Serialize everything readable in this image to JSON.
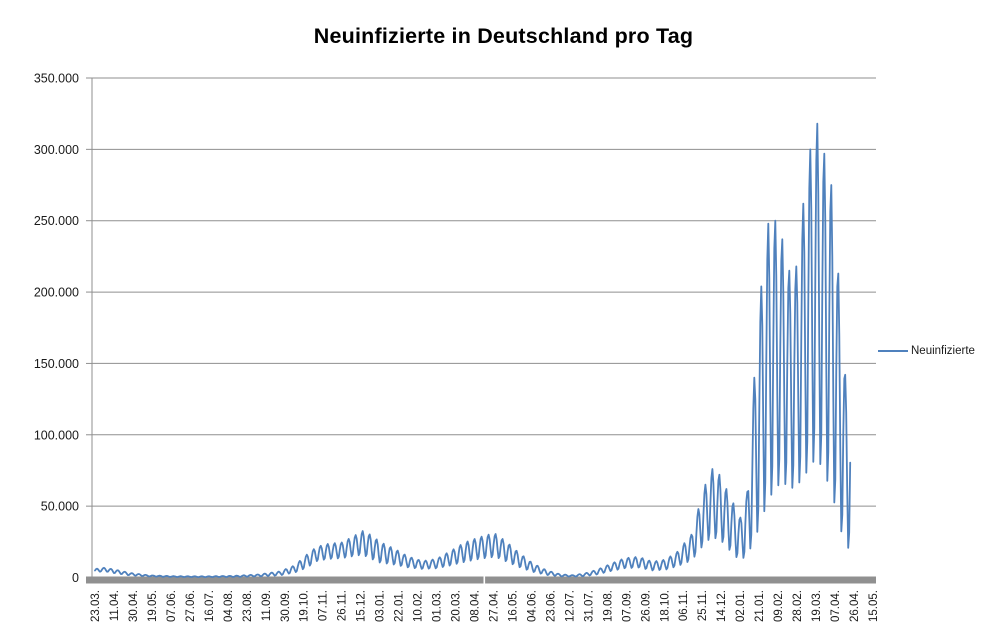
{
  "title": "Neuinfizierte in Deutschland pro Tag",
  "legend": {
    "label": "Neuinfizierte"
  },
  "colors": {
    "series_line": "#4F81BD",
    "gridline": "#8F8F8F",
    "axis_line": "#8F8F8F",
    "axis_bar": "#909090",
    "text": "#1A1A1A",
    "background": "#FFFFFF"
  },
  "chart_data": {
    "type": "line",
    "title": "Neuinfizierte in Deutschland pro Tag",
    "legend_position": "right",
    "grid": true,
    "ylim": [
      0,
      350000
    ],
    "y_tick_step": 50000,
    "y_tick_labels": [
      "0",
      "50.000",
      "100.000",
      "150.000",
      "200.000",
      "250.000",
      "300.000",
      "350.000"
    ],
    "x_tick_labels": [
      "23.03.",
      "11.04.",
      "30.04.",
      "19.05.",
      "07.06.",
      "27.06.",
      "16.07.",
      "04.08.",
      "23.08.",
      "11.09.",
      "30.09.",
      "19.10.",
      "07.11.",
      "26.11.",
      "15.12.",
      "03.01.",
      "22.01.",
      "10.02.",
      "01.03.",
      "20.03.",
      "08.04.",
      "27.04.",
      "16.05.",
      "04.06.",
      "23.06.",
      "12.07.",
      "31.07.",
      "19.08.",
      "07.09.",
      "26.09.",
      "18.10.",
      "06.11.",
      "25.11.",
      "14.12.",
      "02.01.",
      "21.01.",
      "09.02.",
      "28.02.",
      "19.03.",
      "07.04.",
      "26.04.",
      "15.05."
    ],
    "x_days_per_tick": 19,
    "n_days": 756,
    "series": [
      {
        "name": "Neuinfizierte",
        "color": "#4F81BD",
        "weekly_pattern": [
          0.0,
          0.1,
          0.55,
          0.9,
          1.0,
          0.8,
          0.35
        ],
        "weekly_offset": 2,
        "envelope_keypoints": [
          [
            0,
            3500,
            6000
          ],
          [
            9,
            4500,
            6800
          ],
          [
            18,
            3200,
            5800
          ],
          [
            35,
            1500,
            3200
          ],
          [
            55,
            700,
            1500
          ],
          [
            80,
            350,
            900
          ],
          [
            110,
            300,
            800
          ],
          [
            140,
            400,
            1200
          ],
          [
            165,
            800,
            2200
          ],
          [
            185,
            1500,
            4200
          ],
          [
            200,
            3500,
            8500
          ],
          [
            212,
            7000,
            16000
          ],
          [
            222,
            11500,
            21500
          ],
          [
            233,
            13000,
            23500
          ],
          [
            247,
            13500,
            24500
          ],
          [
            258,
            15000,
            28500
          ],
          [
            268,
            16000,
            32500
          ],
          [
            277,
            13000,
            29500
          ],
          [
            285,
            10500,
            25000
          ],
          [
            300,
            9000,
            20000
          ],
          [
            314,
            7000,
            14500
          ],
          [
            328,
            6000,
            11500
          ],
          [
            342,
            6500,
            13000
          ],
          [
            356,
            8500,
            18500
          ],
          [
            370,
            11000,
            24500
          ],
          [
            384,
            13000,
            28000
          ],
          [
            394,
            14000,
            30000
          ],
          [
            401,
            14500,
            30500
          ],
          [
            411,
            11500,
            25500
          ],
          [
            424,
            7500,
            17500
          ],
          [
            438,
            4000,
            10000
          ],
          [
            452,
            1800,
            5000
          ],
          [
            466,
            800,
            2200
          ],
          [
            478,
            600,
            1600
          ],
          [
            490,
            1000,
            2800
          ],
          [
            503,
            2200,
            5500
          ],
          [
            516,
            4500,
            9500
          ],
          [
            530,
            6500,
            13500
          ],
          [
            544,
            7000,
            14500
          ],
          [
            558,
            5000,
            11000
          ],
          [
            571,
            5500,
            12500
          ],
          [
            583,
            8000,
            18000
          ],
          [
            597,
            12000,
            30000
          ],
          [
            604,
            18000,
            48000
          ],
          [
            611,
            25000,
            65000
          ],
          [
            618,
            28000,
            76000
          ],
          [
            625,
            27000,
            72000
          ],
          [
            632,
            22000,
            62000
          ],
          [
            639,
            16000,
            52000
          ],
          [
            646,
            12000,
            42000
          ],
          [
            653,
            16000,
            60000
          ],
          [
            660,
            26000,
            140000
          ],
          [
            667,
            40000,
            204000
          ],
          [
            674,
            55000,
            248000
          ],
          [
            681,
            62000,
            250000
          ],
          [
            688,
            68000,
            237000
          ],
          [
            695,
            62000,
            215000
          ],
          [
            702,
            64000,
            218000
          ],
          [
            709,
            70000,
            262000
          ],
          [
            716,
            78000,
            300000
          ],
          [
            723,
            85000,
            318000
          ],
          [
            730,
            72000,
            297000
          ],
          [
            737,
            62000,
            275000
          ],
          [
            744,
            40000,
            213000
          ],
          [
            751,
            22000,
            142000
          ],
          [
            756,
            20000,
            130000
          ]
        ]
      }
    ]
  }
}
